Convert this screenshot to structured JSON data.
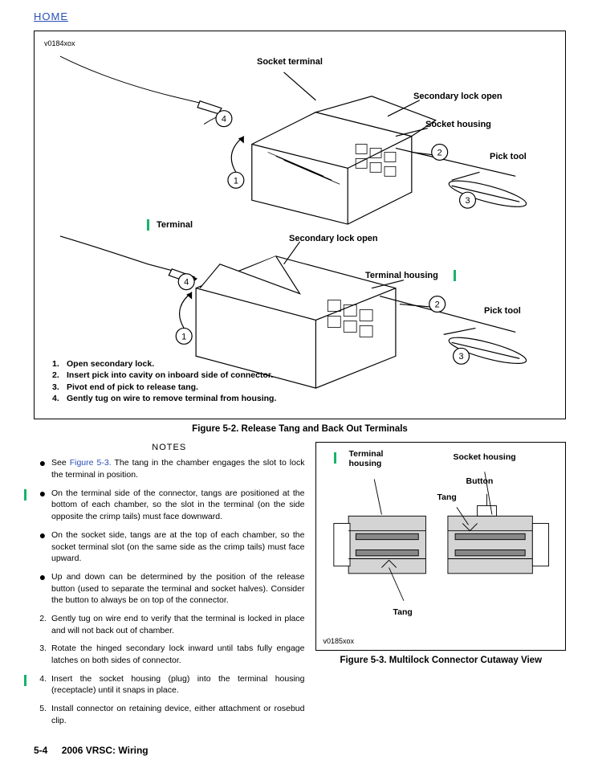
{
  "header": {
    "home": "HOME"
  },
  "figure52": {
    "ref": "v0184xox",
    "labels": {
      "socket_terminal": "Socket terminal",
      "secondary_lock_open_1": "Secondary lock open",
      "socket_housing": "Socket housing",
      "pick_tool_1": "Pick tool",
      "terminal": "Terminal",
      "secondary_lock_open_2": "Secondary lock open",
      "terminal_housing": "Terminal housing",
      "pick_tool_2": "Pick tool"
    },
    "steps": [
      {
        "n": "1.",
        "t": "Open secondary lock."
      },
      {
        "n": "2.",
        "t": "Insert pick into cavity on inboard side of connector."
      },
      {
        "n": "3.",
        "t": "Pivot end of pick to release tang."
      },
      {
        "n": "4.",
        "t": "Gently tug on wire to remove terminal from housing."
      }
    ],
    "caption": "Figure 5-2. Release Tang and Back Out Terminals"
  },
  "notes": {
    "title": "NOTES",
    "items": [
      {
        "type": "bullet",
        "green": false,
        "prefix": "See ",
        "link": "Figure 5-3.",
        "suffix": " The tang in the chamber engages the slot to lock the terminal in position."
      },
      {
        "type": "bullet",
        "green": true,
        "text": "On the terminal side of the connector, tangs are positioned at the bottom of each chamber, so the slot in the terminal (on the side opposite the crimp tails) must face downward."
      },
      {
        "type": "bullet",
        "green": false,
        "text": "On the socket side, tangs are at the top of each chamber, so the socket terminal slot (on the same side as the crimp tails) must face upward."
      },
      {
        "type": "bullet",
        "green": false,
        "text": "Up and down can be determined by the position of the release button (used to separate the terminal and socket halves). Consider the button to always be on top of the connector."
      },
      {
        "type": "num",
        "n": "2.",
        "green": false,
        "text": "Gently tug on wire end to verify that the terminal is locked in place and will not back out of chamber."
      },
      {
        "type": "num",
        "n": "3.",
        "green": false,
        "text": "Rotate the hinged secondary lock inward until tabs fully engage latches on both sides of connector."
      },
      {
        "type": "num",
        "n": "4.",
        "green": true,
        "text": "Insert the socket housing (plug) into the terminal housing (receptacle) until it snaps in place."
      },
      {
        "type": "num",
        "n": "5.",
        "green": false,
        "text": "Install connector on retaining device, either attachment or rosebud clip."
      }
    ]
  },
  "figure53": {
    "ref": "v0185xox",
    "labels": {
      "terminal_housing": "Terminal housing",
      "socket_housing": "Socket housing",
      "button": "Button",
      "tang1": "Tang",
      "tang2": "Tang"
    },
    "caption": "Figure 5-3. Multilock Connector Cutaway View"
  },
  "footer": {
    "page": "5-4",
    "title": "2006 VRSC: Wiring"
  },
  "colors": {
    "link": "#2a4fb8",
    "green": "#18b36a",
    "housing_fill": "#d4d4d4"
  }
}
